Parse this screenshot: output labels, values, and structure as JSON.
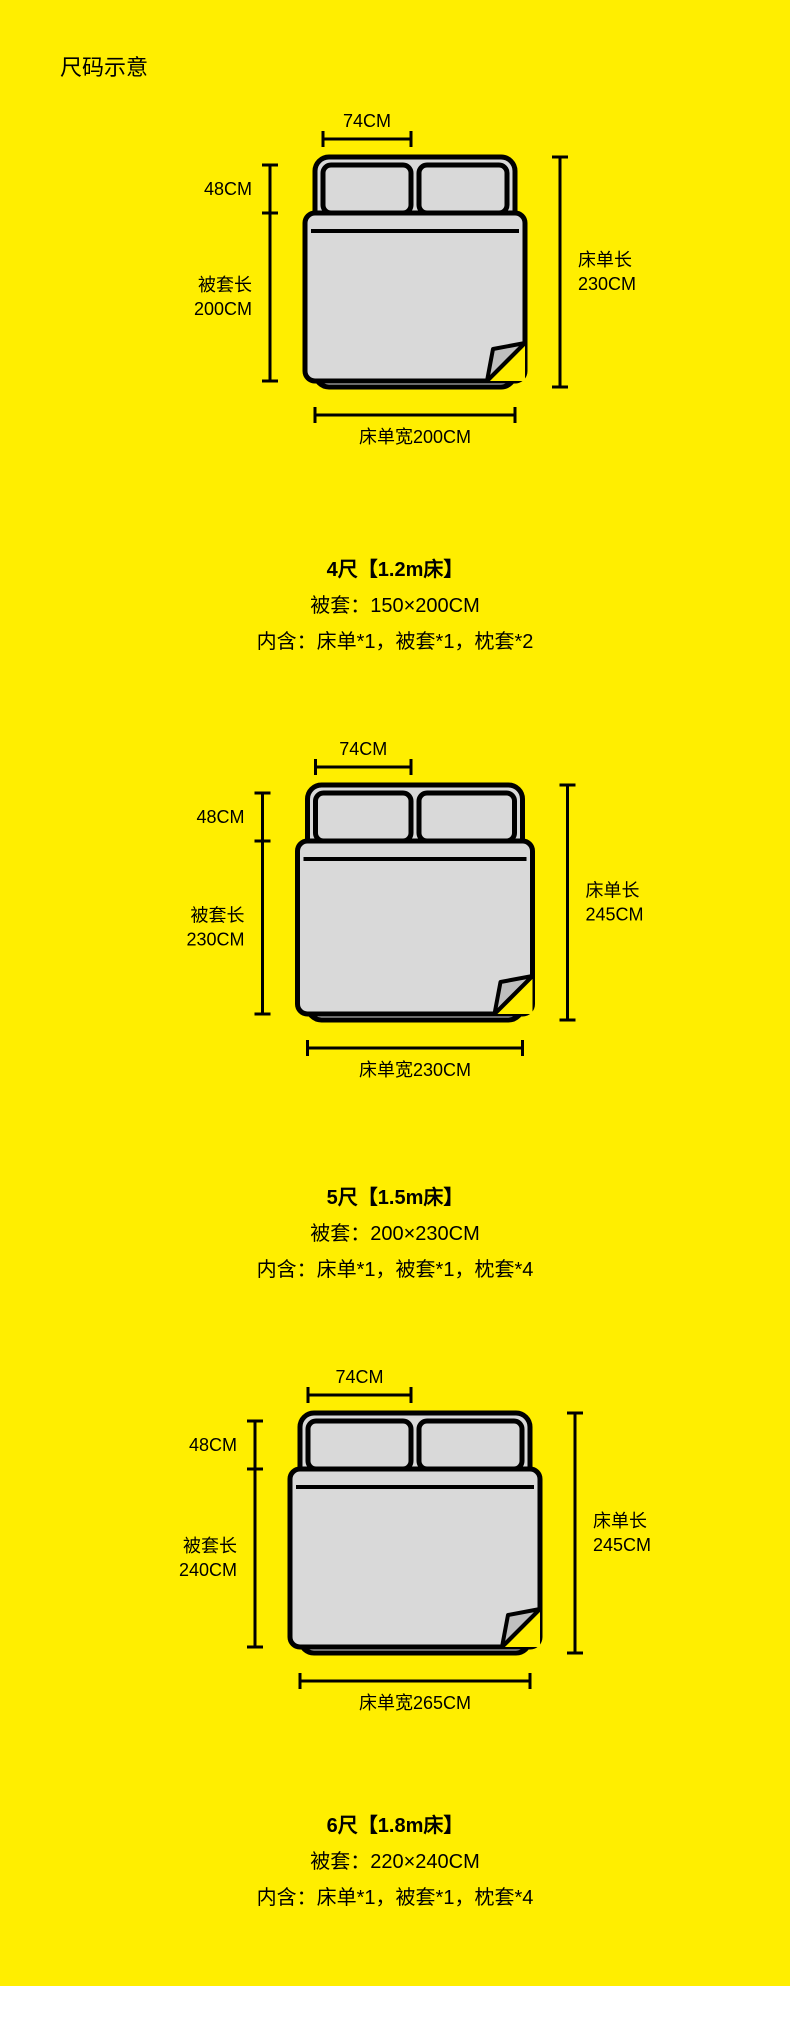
{
  "colors": {
    "bg": "#ffee00",
    "stroke": "#000000",
    "pillow_fill": "#d9d9d9",
    "sheet_fill": "#d9d9d9",
    "fold_fill": "#bfbfbf",
    "text": "#000000"
  },
  "title": "尺码示意",
  "label_font_size": 18,
  "desc_font_size": 20,
  "beds": [
    {
      "pillow_w_label": "74CM",
      "pillow_h_label": "48CM",
      "duvet_len_label": "被套长",
      "duvet_len_value": "200CM",
      "sheet_len_label": "床单长",
      "sheet_len_value": "230CM",
      "sheet_w_label": "床单宽200CM",
      "size_title": "4尺【1.2m床】",
      "duvet_size": "被套：150×200CM",
      "contents": "内含：床单*1，被套*1，枕套*2",
      "svg": {
        "sheet_w": 200,
        "sheet_h": 230,
        "duvet_h": 200
      }
    },
    {
      "pillow_w_label": "74CM",
      "pillow_h_label": "48CM",
      "duvet_len_label": "被套长",
      "duvet_len_value": "230CM",
      "sheet_len_label": "床单长",
      "sheet_len_value": "245CM",
      "sheet_w_label": "床单宽230CM",
      "size_title": "5尺【1.5m床】",
      "duvet_size": "被套：200×230CM",
      "contents": "内含：床单*1，被套*1，枕套*4",
      "svg": {
        "sheet_w": 215,
        "sheet_h": 235,
        "duvet_h": 205
      }
    },
    {
      "pillow_w_label": "74CM",
      "pillow_h_label": "48CM",
      "duvet_len_label": "被套长",
      "duvet_len_value": "240CM",
      "sheet_len_label": "床单长",
      "sheet_len_value": "245CM",
      "sheet_w_label": "床单宽265CM",
      "size_title": "6尺【1.8m床】",
      "duvet_size": "被套：220×240CM",
      "contents": "内含：床单*1，被套*1，枕套*4",
      "svg": {
        "sheet_w": 230,
        "sheet_h": 240,
        "duvet_h": 210
      }
    }
  ]
}
